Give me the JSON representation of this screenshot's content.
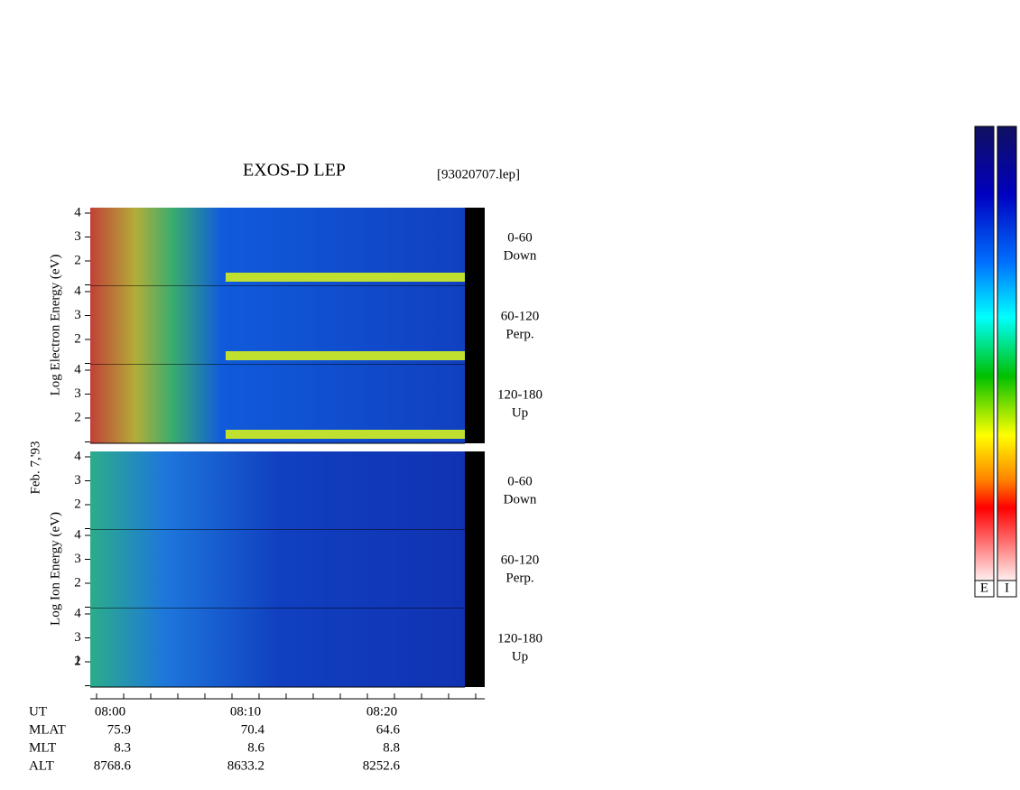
{
  "title": "EXOS-D LEP",
  "file": "[93020707.lep]",
  "date": "Feb. 7,'93",
  "electron": {
    "axis_label": "Log Electron Energy (eV)",
    "panels": [
      {
        "range": "0-60",
        "direction": "Down",
        "yticks": [
          4,
          3,
          2
        ]
      },
      {
        "range": "60-120",
        "direction": "Perp.",
        "yticks": [
          4,
          3,
          2
        ]
      },
      {
        "range": "120-180",
        "direction": "Up",
        "yticks": [
          4,
          3,
          2
        ]
      }
    ]
  },
  "ion": {
    "axis_label": "Log Ion Energy (eV)",
    "panels": [
      {
        "range": "0-60",
        "direction": "Down",
        "yticks": [
          4,
          3,
          2
        ]
      },
      {
        "range": "60-120",
        "direction": "Perp.",
        "yticks": [
          4,
          3,
          2
        ]
      },
      {
        "range": "120-180",
        "direction": "Up",
        "yticks": [
          4,
          3,
          2,
          1
        ]
      }
    ]
  },
  "ut_label": "UT",
  "time_ticks": [
    "08:00",
    "08:10",
    "08:20"
  ],
  "rows": [
    {
      "label": "MLAT",
      "values": [
        "75.9",
        "70.4",
        "64.6"
      ]
    },
    {
      "label": "MLT",
      "values": [
        "8.3",
        "8.6",
        "8.8"
      ]
    },
    {
      "label": "ALT",
      "values": [
        "8768.6",
        "8633.2",
        "8252.6"
      ]
    }
  ],
  "colorbars": [
    "E",
    "I"
  ]
}
